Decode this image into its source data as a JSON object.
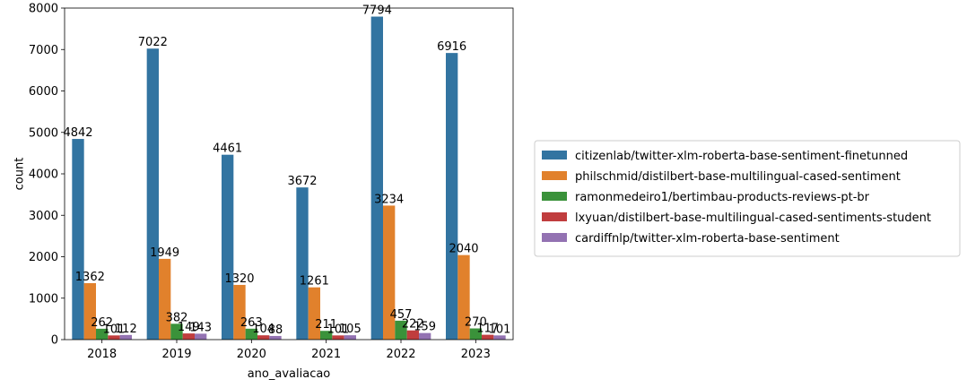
{
  "chart_data": {
    "type": "bar",
    "xlabel": "ano_avaliacao",
    "ylabel": "count",
    "ylim": [
      0,
      8000
    ],
    "yticks": [
      0,
      1000,
      2000,
      3000,
      4000,
      5000,
      6000,
      7000,
      8000
    ],
    "categories": [
      "2018",
      "2019",
      "2020",
      "2021",
      "2022",
      "2023"
    ],
    "legend_position": "right (outside plot)",
    "series": [
      {
        "name": "citizenlab/twitter-xlm-roberta-base-sentiment-finetunned",
        "color": "#3274a1",
        "values": [
          4842,
          7022,
          4461,
          3672,
          7794,
          6916
        ]
      },
      {
        "name": "philschmid/distilbert-base-multilingual-cased-sentiment",
        "color": "#e1812c",
        "values": [
          1362,
          1949,
          1320,
          1261,
          3234,
          2040
        ]
      },
      {
        "name": "ramonmedeiro1/bertimbau-products-reviews-pt-br",
        "color": "#3a923a",
        "values": [
          262,
          382,
          263,
          211,
          457,
          270
        ]
      },
      {
        "name": "lxyuan/distilbert-base-multilingual-cased-sentiments-student",
        "color": "#c03d3e",
        "values": [
          101,
          149,
          104,
          101,
          222,
          117
        ]
      },
      {
        "name": "cardiffnlp/twitter-xlm-roberta-base-sentiment",
        "color": "#9372b2",
        "values": [
          112,
          143,
          88,
          105,
          159,
          101
        ]
      }
    ]
  }
}
